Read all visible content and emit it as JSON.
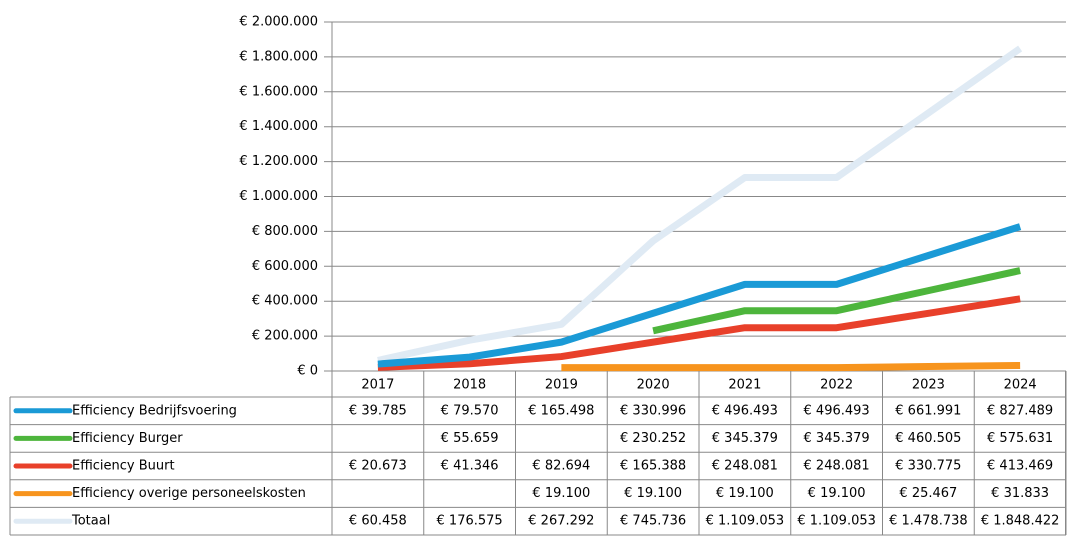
{
  "chart_data": {
    "type": "line",
    "categories": [
      "2017",
      "2018",
      "2019",
      "2020",
      "2021",
      "2022",
      "2023",
      "2024"
    ],
    "series": [
      {
        "name": "Efficiency Bedrijfsvoering",
        "color": "#1a9ad6",
        "values": [
          39785,
          79570,
          165498,
          330996,
          496493,
          496493,
          661991,
          827489
        ],
        "value_labels": [
          "€ 39.785",
          "€ 79.570",
          "€ 165.498",
          "€ 330.996",
          "€ 496.493",
          "€ 496.493",
          "€ 661.991",
          "€ 827.489"
        ]
      },
      {
        "name": "Efficiency Burger",
        "color": "#4db53c",
        "values": [
          null,
          55659,
          null,
          230252,
          345379,
          345379,
          460505,
          575631
        ],
        "value_labels": [
          null,
          "€ 55.659",
          null,
          "€ 230.252",
          "€ 345.379",
          "€ 345.379",
          "€ 460.505",
          "€ 575.631"
        ]
      },
      {
        "name": "Efficiency Buurt",
        "color": "#e8402a",
        "values": [
          20673,
          41346,
          82694,
          165388,
          248081,
          248081,
          330775,
          413469
        ],
        "value_labels": [
          "€ 20.673",
          "€ 41.346",
          "€ 82.694",
          "€ 165.388",
          "€ 248.081",
          "€ 248.081",
          "€ 330.775",
          "€ 413.469"
        ]
      },
      {
        "name": "Efficiency overige personeelskosten",
        "color": "#f7941d",
        "values": [
          null,
          null,
          19100,
          19100,
          19100,
          19100,
          25467,
          31833
        ],
        "value_labels": [
          null,
          null,
          "€ 19.100",
          "€ 19.100",
          "€ 19.100",
          "€ 19.100",
          "€ 25.467",
          "€ 31.833"
        ]
      },
      {
        "name": "Totaal",
        "color": "#dfeaf4",
        "values": [
          60458,
          176575,
          267292,
          745736,
          1109053,
          1109053,
          1478738,
          1848422
        ],
        "value_labels": [
          "€ 60.458",
          "€ 176.575",
          "€ 267.292",
          "€ 745.736",
          "€ 1.109.053",
          "€ 1.109.053",
          "€ 1.478.738",
          "€ 1.848.422"
        ]
      }
    ],
    "ylim": [
      0,
      2000000
    ],
    "yticks": [
      {
        "value": 0,
        "label": "€ 0"
      },
      {
        "value": 200000,
        "label": "€ 200.000"
      },
      {
        "value": 400000,
        "label": "€ 400.000"
      },
      {
        "value": 600000,
        "label": "€ 600.000"
      },
      {
        "value": 800000,
        "label": "€ 800.000"
      },
      {
        "value": 1000000,
        "label": "€ 1.000.000"
      },
      {
        "value": 1200000,
        "label": "€ 1.200.000"
      },
      {
        "value": 1400000,
        "label": "€ 1.400.000"
      },
      {
        "value": 1600000,
        "label": "€ 1.600.000"
      },
      {
        "value": 1800000,
        "label": "€ 1.800.000"
      },
      {
        "value": 2000000,
        "label": "€ 2.000.000"
      }
    ],
    "grid": true
  }
}
